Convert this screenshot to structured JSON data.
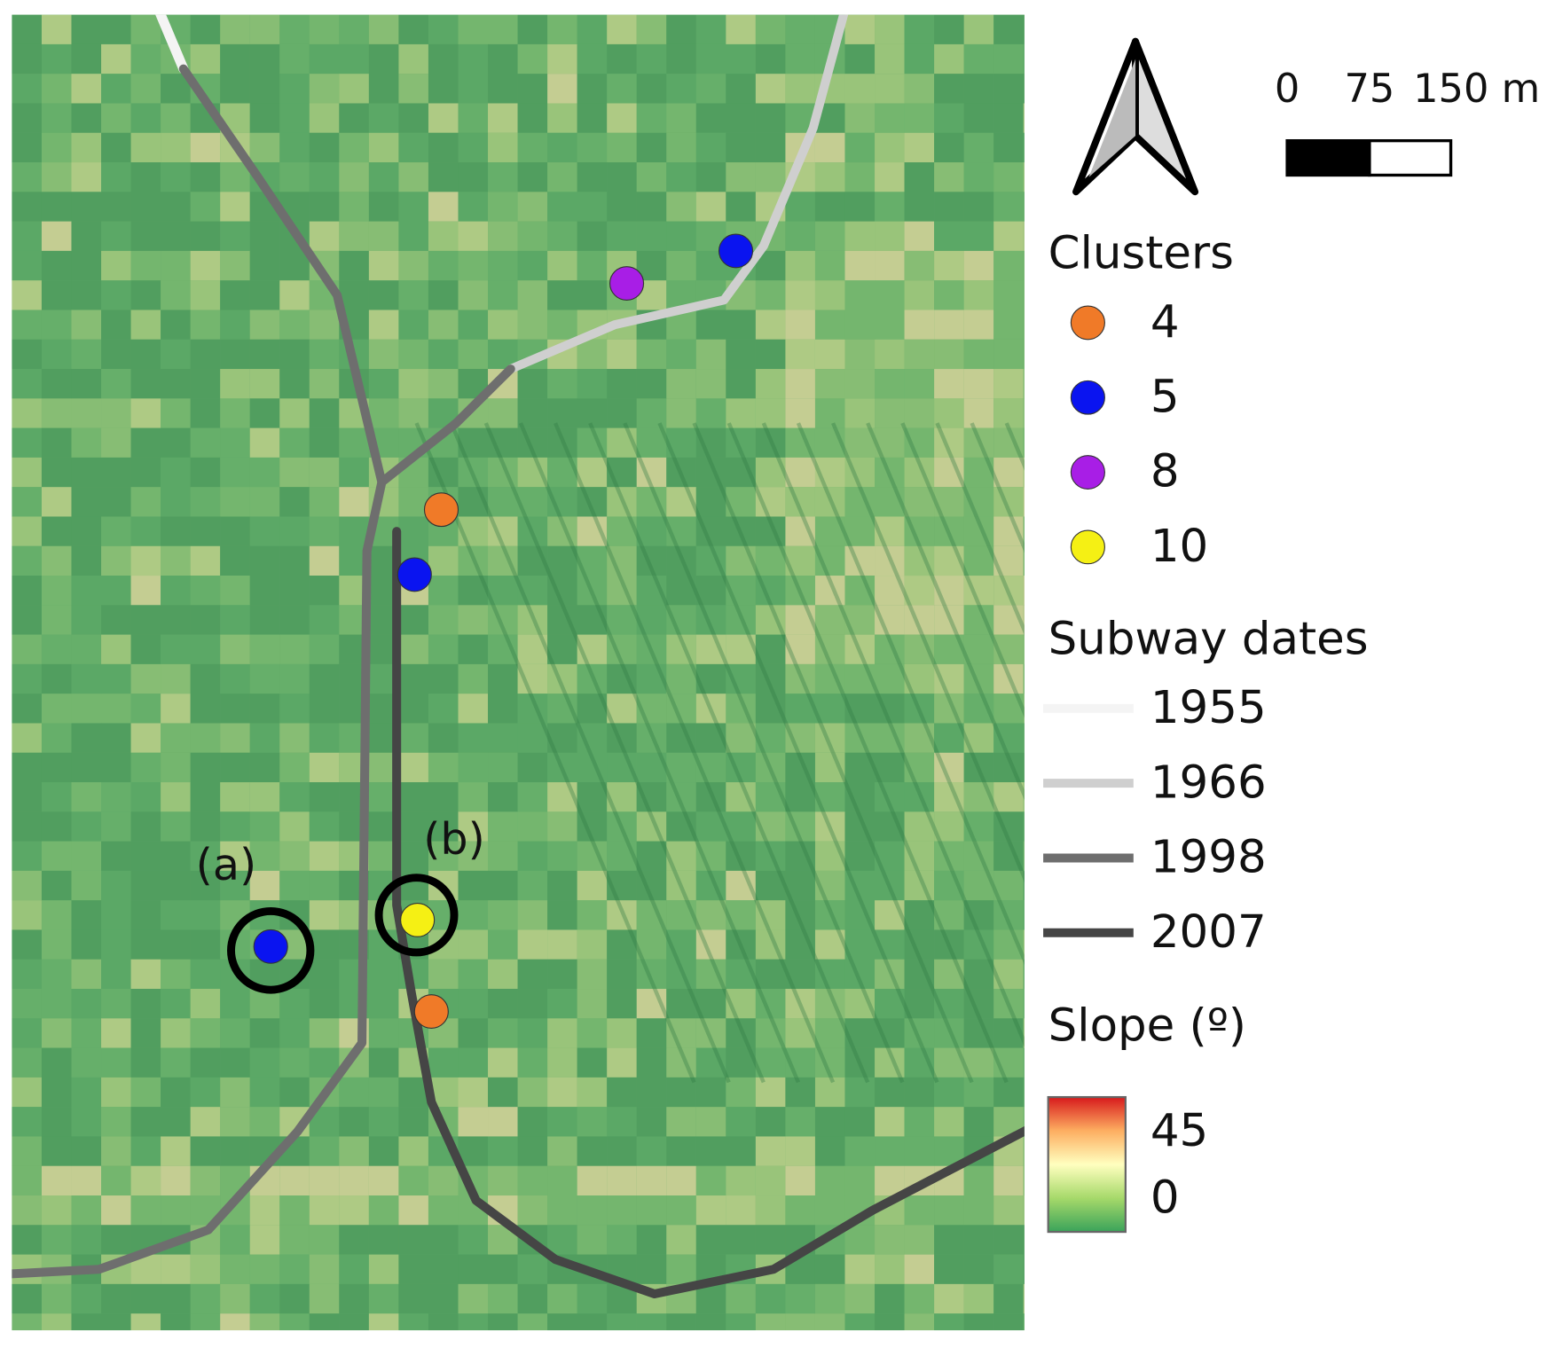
{
  "map": {
    "annotations": [
      "(a)",
      "(b)"
    ]
  },
  "legend": {
    "scale_bar": {
      "labels": [
        "0",
        "75",
        "150 m"
      ]
    },
    "clusters": {
      "title": "Clusters",
      "items": [
        {
          "label": "4",
          "color": "#f07a28"
        },
        {
          "label": "5",
          "color": "#0a14f0"
        },
        {
          "label": "8",
          "color": "#a81ee6"
        },
        {
          "label": "10",
          "color": "#f5f014"
        }
      ]
    },
    "subway": {
      "title": "Subway dates",
      "items": [
        {
          "label": "1955",
          "color": "#f4f4f4"
        },
        {
          "label": "1966",
          "color": "#cfcfcf"
        },
        {
          "label": "1998",
          "color": "#6e6e6e"
        },
        {
          "label": "2007",
          "color": "#454545"
        }
      ]
    },
    "slope": {
      "title": "Slope (º)",
      "max_label": "45",
      "min_label": "0",
      "colors": [
        "#d7191c",
        "#fdae61",
        "#ffffbf",
        "#a6d96a",
        "#3aa35a"
      ]
    }
  }
}
